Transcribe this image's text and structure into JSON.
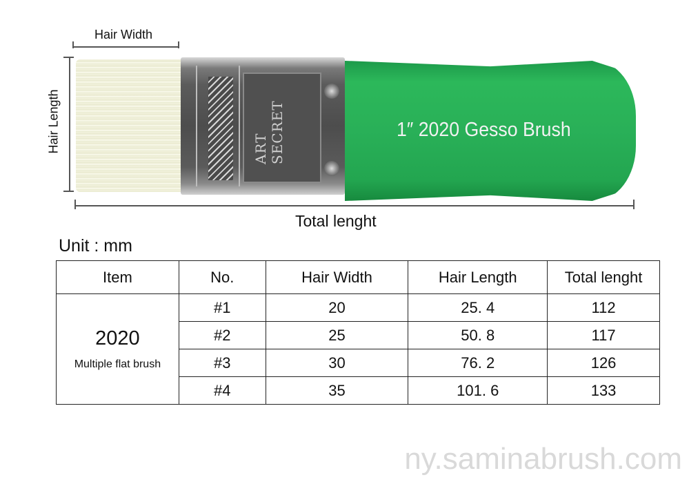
{
  "annotations": {
    "hair_width": "Hair Width",
    "hair_length": "Hair Length",
    "total_length": "Total lenght"
  },
  "product": {
    "brand_marking": "ART SECRET",
    "handle_text": "1″  2020 Gesso Brush",
    "handle_color": "#29b058"
  },
  "unit_label": "Unit : mm",
  "table": {
    "headers": [
      "Item",
      "No.",
      "Hair Width",
      "Hair Length",
      "Total lenght"
    ],
    "item": {
      "name": "2020",
      "description": "Multiple flat brush"
    },
    "rows": [
      {
        "no": "#1",
        "hair_width": "20",
        "hair_length": "25. 4",
        "total_length": "112"
      },
      {
        "no": "#2",
        "hair_width": "25",
        "hair_length": "50. 8",
        "total_length": "117"
      },
      {
        "no": "#3",
        "hair_width": "30",
        "hair_length": "76. 2",
        "total_length": "126"
      },
      {
        "no": "#4",
        "hair_width": "35",
        "hair_length": "101. 6",
        "total_length": "133"
      }
    ]
  },
  "watermark": "ny.saminabrush.com"
}
